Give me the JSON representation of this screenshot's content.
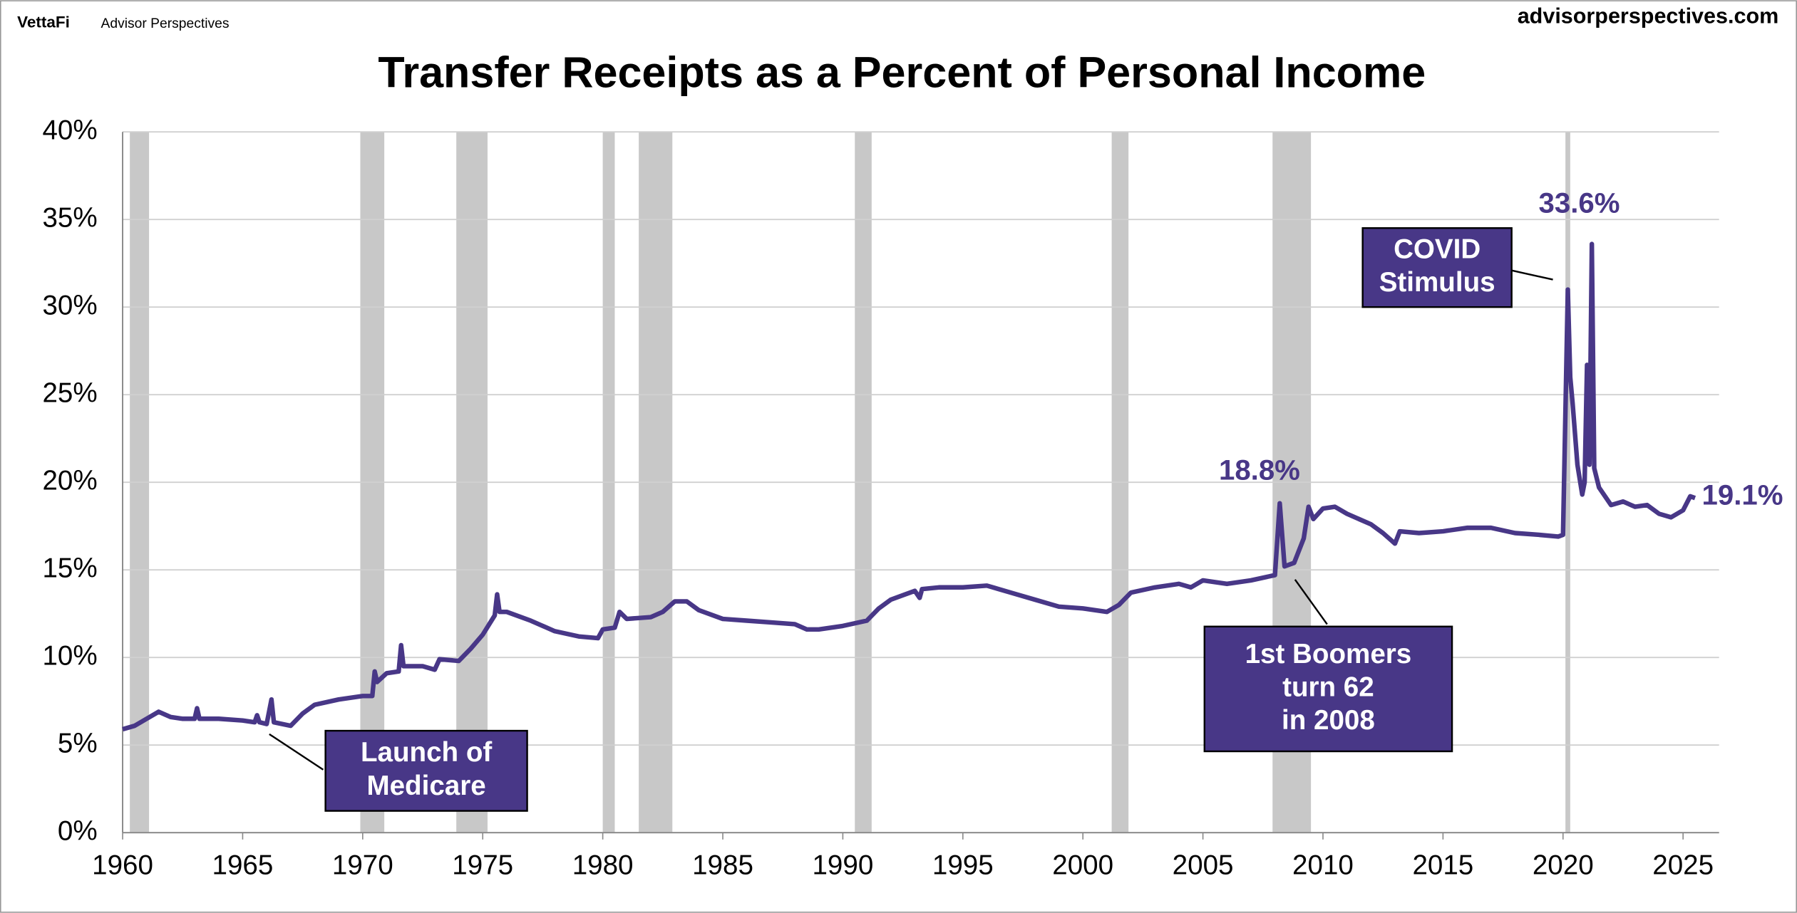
{
  "header": {
    "brand": "VettaFi",
    "brand_sub": "Advisor Perspectives",
    "site": "advisorperspectives.com"
  },
  "chart_data": {
    "type": "line",
    "title": "Transfer Receipts as a Percent of Personal Income",
    "xlim": [
      1960,
      2026.5
    ],
    "xticks": [
      1960,
      1965,
      1970,
      1975,
      1980,
      1985,
      1990,
      1995,
      2000,
      2005,
      2010,
      2015,
      2020,
      2025
    ],
    "ylim": [
      0,
      40
    ],
    "yticks": [
      {
        "value": 0,
        "label": "0%"
      },
      {
        "value": 5,
        "label": "5%"
      },
      {
        "value": 10,
        "label": "10%"
      },
      {
        "value": 15,
        "label": "15%"
      },
      {
        "value": 20,
        "label": "20%"
      },
      {
        "value": 25,
        "label": "25%"
      },
      {
        "value": 30,
        "label": "30%"
      },
      {
        "value": 35,
        "label": "35%"
      },
      {
        "value": 40,
        "label": "40%"
      }
    ],
    "grid": true,
    "recession_color": "#c8c8c8",
    "recessions": [
      [
        1960.3,
        1961.1
      ],
      [
        1969.9,
        1970.9
      ],
      [
        1973.9,
        1975.2
      ],
      [
        1980.0,
        1980.5
      ],
      [
        1981.5,
        1982.9
      ],
      [
        1990.5,
        1991.2
      ],
      [
        2001.2,
        2001.9
      ],
      [
        2007.9,
        2009.5
      ],
      [
        2020.1,
        2020.3
      ]
    ],
    "series": [
      {
        "color": "#483787",
        "x": [
          1960.0,
          1960.5,
          1961.0,
          1961.5,
          1962.0,
          1962.5,
          1963.0,
          1963.1,
          1963.2,
          1964.0,
          1965.0,
          1965.5,
          1965.6,
          1965.7,
          1966.0,
          1966.2,
          1966.3,
          1967.0,
          1967.5,
          1968.0,
          1969.0,
          1970.0,
          1970.4,
          1970.5,
          1970.6,
          1971.0,
          1971.5,
          1971.6,
          1971.7,
          1972.5,
          1973.0,
          1973.2,
          1974.0,
          1974.5,
          1975.0,
          1975.5,
          1975.6,
          1975.7,
          1976.0,
          1977.0,
          1978.0,
          1979.0,
          1979.8,
          1980.0,
          1980.5,
          1980.7,
          1981.0,
          1982.0,
          1982.5,
          1983.0,
          1983.5,
          1984.0,
          1985.0,
          1986.0,
          1987.0,
          1988.0,
          1988.5,
          1989.0,
          1990.0,
          1991.0,
          1991.5,
          1992.0,
          1993.0,
          1993.2,
          1993.3,
          1994.0,
          1995.0,
          1996.0,
          1997.0,
          1998.0,
          1999.0,
          2000.0,
          2001.0,
          2001.5,
          2002.0,
          2003.0,
          2004.0,
          2004.5,
          2005.0,
          2006.0,
          2007.0,
          2008.0,
          2008.2,
          2008.4,
          2008.8,
          2009.2,
          2009.4,
          2009.6,
          2010.0,
          2010.5,
          2011.0,
          2012.0,
          2012.5,
          2013.0,
          2013.2,
          2014.0,
          2015.0,
          2016.0,
          2017.0,
          2018.0,
          2019.0,
          2019.8,
          2020.0,
          2020.2,
          2020.3,
          2020.4,
          2020.6,
          2020.8,
          2020.9,
          2021.0,
          2021.1,
          2021.2,
          2021.3,
          2021.5,
          2022.0,
          2022.5,
          2023.0,
          2023.5,
          2024.0,
          2024.5,
          2025.0,
          2025.3,
          2025.5
        ],
        "values": [
          5.9,
          6.1,
          6.5,
          6.9,
          6.6,
          6.5,
          6.5,
          7.1,
          6.5,
          6.5,
          6.4,
          6.3,
          6.7,
          6.3,
          6.2,
          7.6,
          6.3,
          6.1,
          6.8,
          7.3,
          7.6,
          7.8,
          7.8,
          9.2,
          8.6,
          9.1,
          9.2,
          10.7,
          9.5,
          9.5,
          9.3,
          9.9,
          9.8,
          10.5,
          11.3,
          12.4,
          13.6,
          12.6,
          12.6,
          12.1,
          11.5,
          11.2,
          11.1,
          11.6,
          11.7,
          12.6,
          12.2,
          12.3,
          12.6,
          13.2,
          13.2,
          12.7,
          12.2,
          12.1,
          12.0,
          11.9,
          11.6,
          11.6,
          11.8,
          12.1,
          12.8,
          13.3,
          13.8,
          13.4,
          13.9,
          14.0,
          14.0,
          14.1,
          13.7,
          13.3,
          12.9,
          12.8,
          12.6,
          13.0,
          13.7,
          14.0,
          14.2,
          14.0,
          14.4,
          14.2,
          14.4,
          14.7,
          18.8,
          15.2,
          15.4,
          16.8,
          18.6,
          17.9,
          18.5,
          18.6,
          18.2,
          17.6,
          17.1,
          16.5,
          17.2,
          17.1,
          17.2,
          17.4,
          17.4,
          17.1,
          17.0,
          16.9,
          17.0,
          31.0,
          26.0,
          24.5,
          21.0,
          19.3,
          20.0,
          26.7,
          21.0,
          33.6,
          20.8,
          19.7,
          18.7,
          18.9,
          18.6,
          18.7,
          18.2,
          18.0,
          18.4,
          19.2,
          19.1
        ]
      }
    ],
    "annotations": [
      {
        "label": "18.8%",
        "value": 18.8
      },
      {
        "label": "33.6%",
        "value": 33.6
      },
      {
        "label": "19.1%",
        "value": 19.1
      }
    ],
    "callouts": [
      {
        "lines": [
          "COVID",
          "Stimulus"
        ]
      },
      {
        "lines": [
          "1st Boomers",
          "turn 62",
          "in 2008"
        ]
      },
      {
        "lines": [
          "Launch of",
          "Medicare"
        ]
      }
    ]
  }
}
